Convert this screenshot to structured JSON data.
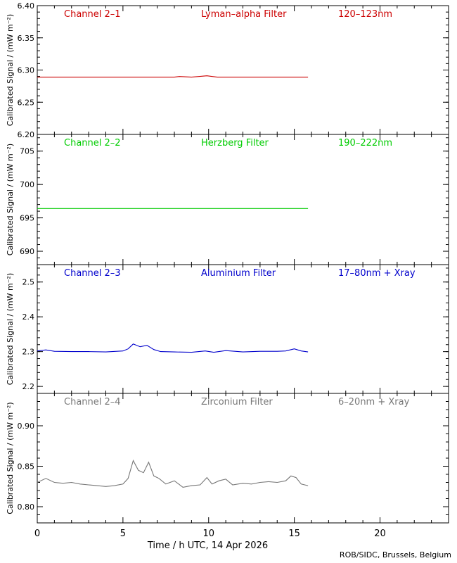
{
  "chart_data": [
    {
      "type": "line",
      "channel": "Channel 2–1",
      "filter": "Lyman–alpha Filter",
      "band": "120–123nm",
      "color": "#cc0000",
      "ylabel": "Calibrated Signal / (mW m⁻²)",
      "ylim": [
        6.2,
        6.4
      ],
      "yticks": [
        "6.20",
        "6.25",
        "6.30",
        "6.35",
        "6.40"
      ],
      "x": [
        0,
        1,
        2,
        3,
        4,
        5,
        6,
        7,
        8,
        8.3,
        9,
        9.9,
        10.5,
        11,
        12,
        13,
        14,
        15,
        15.8
      ],
      "values": [
        6.289,
        6.289,
        6.289,
        6.289,
        6.289,
        6.289,
        6.289,
        6.289,
        6.289,
        6.29,
        6.289,
        6.291,
        6.289,
        6.289,
        6.289,
        6.289,
        6.289,
        6.289,
        6.289
      ]
    },
    {
      "type": "line",
      "channel": "Channel 2–2",
      "filter": "Herzberg Filter",
      "band": "190–222nm",
      "color": "#00cc00",
      "ylabel": "Calibrated Signal / (mW m⁻²)",
      "ylim": [
        688,
        707.5
      ],
      "yticks": [
        "690",
        "695",
        "700",
        "705"
      ],
      "x": [
        0,
        2,
        4,
        6,
        8,
        10,
        12,
        14,
        15.8
      ],
      "values": [
        696.4,
        696.4,
        696.4,
        696.4,
        696.4,
        696.4,
        696.4,
        696.4,
        696.4
      ]
    },
    {
      "type": "line",
      "channel": "Channel 2–3",
      "filter": "Aluminium Filter",
      "band": "17–80nm + Xray",
      "color": "#0000cc",
      "ylabel": "Calibrated Signal / (mW m⁻²)",
      "ylim": [
        2.18,
        2.55
      ],
      "yticks": [
        "2.2",
        "2.3",
        "2.4",
        "2.5"
      ],
      "x": [
        0,
        0.5,
        1,
        2,
        3,
        4,
        5,
        5.3,
        5.6,
        6.0,
        6.4,
        6.8,
        7.2,
        8,
        9,
        9.8,
        10.3,
        11,
        12,
        13,
        14,
        14.5,
        15.0,
        15.4,
        15.8
      ],
      "values": [
        2.302,
        2.305,
        2.301,
        2.3,
        2.3,
        2.299,
        2.302,
        2.308,
        2.322,
        2.314,
        2.318,
        2.306,
        2.3,
        2.299,
        2.298,
        2.302,
        2.298,
        2.303,
        2.299,
        2.301,
        2.301,
        2.302,
        2.308,
        2.302,
        2.299
      ]
    },
    {
      "type": "line",
      "channel": "Channel 2–4",
      "filter": "Zirconium Filter",
      "band": "6–20nm + Xray",
      "color": "#777777",
      "ylabel": "Calibrated Signal / (mW m⁻²)",
      "ylim": [
        0.78,
        0.94
      ],
      "yticks": [
        "0.80",
        "0.85",
        "0.90"
      ],
      "x": [
        0,
        0.5,
        1,
        1.5,
        2,
        2.5,
        3,
        3.5,
        4,
        4.5,
        5,
        5.3,
        5.6,
        5.9,
        6.2,
        6.5,
        6.8,
        7.1,
        7.5,
        8,
        8.5,
        9,
        9.5,
        9.9,
        10.2,
        10.6,
        11,
        11.4,
        12,
        12.5,
        13,
        13.5,
        14,
        14.5,
        14.8,
        15.1,
        15.4,
        15.8
      ],
      "values": [
        0.83,
        0.835,
        0.83,
        0.829,
        0.83,
        0.828,
        0.827,
        0.826,
        0.825,
        0.826,
        0.828,
        0.835,
        0.857,
        0.845,
        0.842,
        0.855,
        0.838,
        0.835,
        0.828,
        0.832,
        0.824,
        0.826,
        0.827,
        0.836,
        0.828,
        0.832,
        0.834,
        0.827,
        0.829,
        0.828,
        0.83,
        0.831,
        0.83,
        0.832,
        0.838,
        0.836,
        0.828,
        0.826
      ]
    }
  ],
  "x_axis": {
    "label": "Time / h UTC, 14 Apr 2026",
    "xlim": [
      0,
      24
    ],
    "ticks": [
      "0",
      "5",
      "10",
      "15",
      "20"
    ]
  },
  "credit": "ROB/SIDC, Brussels, Belgium"
}
